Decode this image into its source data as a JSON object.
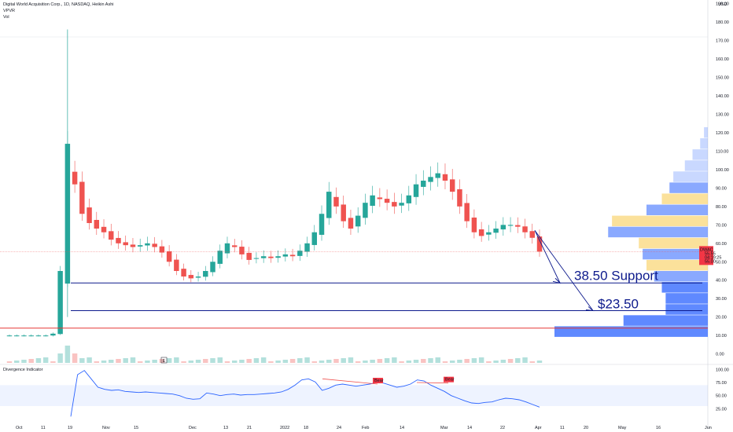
{
  "header": {
    "title": "Digital World Acquisition Corp., 1D, NASDAQ, Heikin Ashi",
    "indicator1": "VPVR",
    "indicator2": "Vol",
    "currency": "USD"
  },
  "oscillator": {
    "title": "Divergence Indicator"
  },
  "colors": {
    "up": "#26a69a",
    "down": "#ef5350",
    "annotation": "#0d1a8c",
    "osc_line": "#2962ff",
    "vpvr_blue": "#2962ff",
    "vpvr_yellow": "#f7c948",
    "badge": "#f23645"
  },
  "annotations": [
    {
      "text": "38.50 Support",
      "price": 38.5
    },
    {
      "text": "$23.50",
      "price": 23.5
    }
  ],
  "price_badge": {
    "ticker": "DWAC",
    "price": "55.55",
    "countdown": "04:19:25",
    "current": "55.00"
  },
  "chart_data": {
    "type": "candlestick",
    "title": "Digital World Acquisition Corp., 1D, NASDAQ, Heikin Ashi",
    "y_ticks": [
      "190.00",
      "180.00",
      "170.00",
      "160.00",
      "150.00",
      "140.00",
      "130.00",
      "120.00",
      "110.00",
      "100.00",
      "90.00",
      "80.00",
      "70.00",
      "60.00",
      "50.00",
      "40.00",
      "30.00",
      "20.00",
      "10.00",
      "0.00"
    ],
    "x_ticks": [
      "Oct",
      "11",
      "19",
      "Nov",
      "15",
      "Dec",
      "13",
      "21",
      "2022",
      "18",
      "24",
      "Feb",
      "14",
      "Mar",
      "14",
      "22",
      "Apr",
      "11",
      "20",
      "May",
      "16",
      "Jun"
    ],
    "ylim": [
      -4,
      192
    ],
    "series_close": [
      10,
      10,
      10,
      10,
      10,
      10,
      11,
      45,
      114,
      92,
      76,
      71,
      68,
      66,
      62,
      60,
      59,
      58,
      59,
      60,
      58,
      55,
      50,
      45,
      42,
      41,
      42,
      45,
      50,
      56,
      60,
      58,
      54,
      51,
      52,
      53,
      52,
      53,
      54,
      53,
      56,
      60,
      66,
      76,
      88,
      80,
      72,
      68,
      75,
      82,
      86,
      84,
      82,
      80,
      82,
      86,
      92,
      94,
      96,
      98,
      94,
      88,
      80,
      72,
      66,
      64,
      66,
      68,
      70,
      70,
      69,
      66,
      63,
      55.5
    ],
    "horizontal_lines": [
      {
        "label": "38.50 Support",
        "price": 38.5
      },
      {
        "label": "$23.50",
        "price": 23.5
      },
      {
        "label": "",
        "price": 14
      }
    ],
    "vpvr": {
      "price_bins": [
        12,
        18,
        24,
        30,
        36,
        42,
        48,
        54,
        60,
        66,
        72,
        78,
        84,
        90,
        96,
        102,
        108,
        114,
        120
      ],
      "volumes": [
        40,
        22,
        11,
        11,
        12,
        14,
        16,
        17,
        18,
        26,
        25,
        16,
        12,
        10,
        9,
        6,
        4,
        2,
        1
      ]
    },
    "oscillator": {
      "title": "Divergence Indicator",
      "y_ticks": [
        "100.00",
        "75.00",
        "50.00",
        "25.00"
      ],
      "ylim": [
        0,
        105
      ],
      "band": [
        30,
        70
      ],
      "values": [
        10,
        90,
        98,
        82,
        66,
        62,
        60,
        61,
        58,
        57,
        56,
        57,
        56,
        55,
        54,
        53,
        50,
        45,
        43,
        44,
        55,
        53,
        50,
        52,
        53,
        51,
        52,
        52,
        53,
        54,
        55,
        57,
        62,
        70,
        80,
        82,
        76,
        60,
        64,
        70,
        72,
        70,
        68,
        70,
        72,
        75,
        74,
        70,
        66,
        68,
        72,
        80,
        78,
        70,
        64,
        58,
        50,
        45,
        40,
        36,
        35,
        37,
        38,
        42,
        45,
        44,
        42,
        38,
        33,
        28
      ],
      "bear_labels": [
        "Bear",
        "Bear"
      ]
    }
  }
}
